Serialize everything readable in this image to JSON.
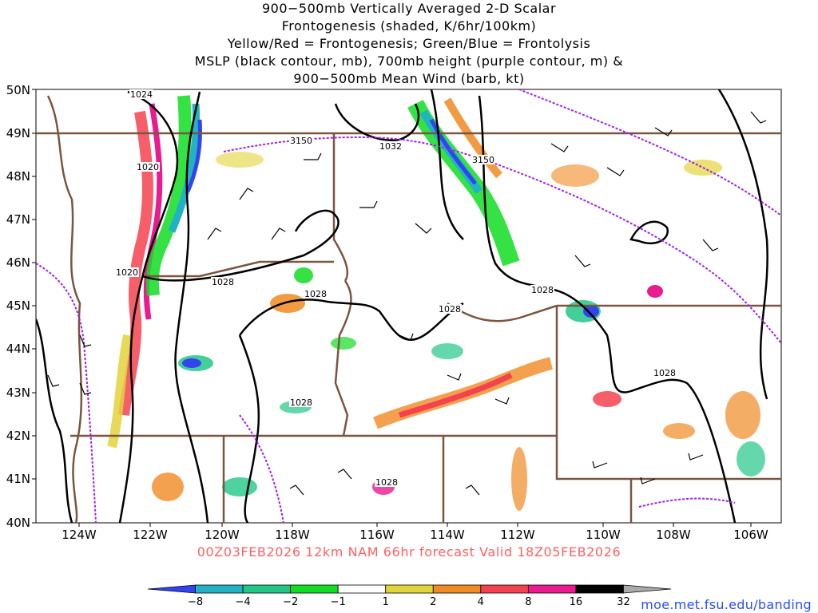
{
  "title_lines": [
    "900−500mb Vertically Averaged 2-D Scalar",
    "Frontogenesis (shaded, K/6hr/100km)",
    "Yellow/Red = Frontogenesis;  Green/Blue = Frontolysis",
    "MSLP (black contour, mb), 700mb height (purple contour, m) &",
    "900−500mb Mean Wind (barb, kt)"
  ],
  "lat_labels": [
    "50N",
    "49N",
    "48N",
    "47N",
    "46N",
    "45N",
    "44N",
    "43N",
    "42N",
    "41N",
    "40N"
  ],
  "lon_labels": [
    "124W",
    "122W",
    "120W",
    "118W",
    "116W",
    "114W",
    "112W",
    "110W",
    "108W",
    "106W"
  ],
  "contour_labels": {
    "mslp": [
      "1024",
      "1020",
      "1032",
      "1020",
      "1028",
      "1028",
      "1028",
      "1028",
      "1028",
      "1028",
      "1028"
    ],
    "height_700mb": [
      "3150",
      "3150"
    ]
  },
  "footer": "00Z03FEB2026 12km NAM 66hr forecast Valid 18Z05FEB2026",
  "credit": "moe.met.fsu.edu/banding",
  "colorbar": {
    "ticks": [
      "−8",
      "−4",
      "−2",
      "−1",
      "1",
      "2",
      "4",
      "8",
      "16",
      "32"
    ],
    "colors": [
      "#3344ee",
      "#22b2c4",
      "#22c788",
      "#11dd22",
      "#ffffff",
      "#e2d43b",
      "#f08a22",
      "#f4434f",
      "#ea1a90",
      "#000000",
      "#aaaaaa"
    ]
  },
  "colors": {
    "state_border": "#7a5540",
    "mslp_contour": "#000000",
    "height_contour": "#a020f0",
    "footer_text": "#ff6060",
    "credit_text": "#2a4cff"
  }
}
